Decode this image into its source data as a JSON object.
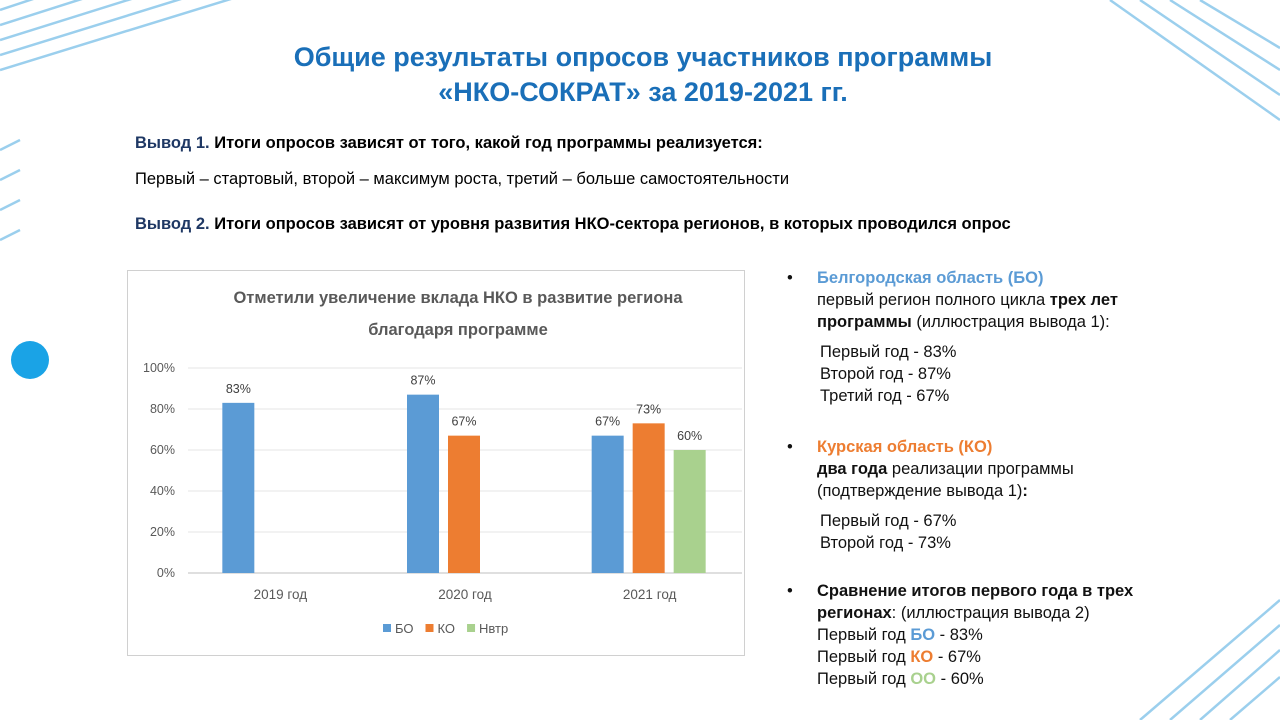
{
  "title": [
    "Общие результаты опросов участников программы",
    "«НКО-СОКРАТ» за 2019-2021 гг."
  ],
  "conclusions": [
    {
      "label": "Вывод 1.",
      "text": "Итоги опросов зависят от того, какой год программы реализуется:",
      "detail": "Первый – стартовый, второй – максимум роста, третий – больше самостоятельности"
    },
    {
      "label": "Вывод 2.",
      "text": "Итоги опросов зависят от уровня развития НКО-сектора регионов, в которых проводился опрос"
    }
  ],
  "notes": [
    {
      "heading": "Белгородская область (БО)",
      "desc": [
        "первый регион полного цикла",
        "трех лет программы",
        "(иллюстрация  вывода 1):"
      ],
      "lines": [
        "Первый год - 83%",
        "Второй год - 87%",
        "Третий год - 67%"
      ]
    },
    {
      "heading": "Курская область (КО)",
      "desc": [
        "два года",
        "реализации программы (подтверждение вывода 1)",
        ":"
      ],
      "lines": [
        "Первый год - 67%",
        "Второй год - 73%"
      ]
    },
    {
      "heading": "Сравнение итогов первого года в трех регионах",
      "desc": [
        ": (иллюстрация  вывода 2)"
      ],
      "lines": [
        [
          "Первый год",
          "БО",
          "- 83%"
        ],
        [
          "Первый год",
          "КО",
          "- 67%"
        ],
        [
          "Первый год",
          "ОО",
          "- 60%"
        ]
      ]
    }
  ],
  "chart_data": {
    "type": "bar",
    "title": [
      "Отметили увеличение вклада НКО в развитие региона",
      "благодаря программе"
    ],
    "categories": [
      "2019 год",
      "2020 год",
      "2021 год"
    ],
    "series": [
      {
        "name": "БО",
        "color": "#5b9bd5",
        "values": [
          83,
          87,
          67
        ],
        "value_labels": [
          "83%",
          "87%",
          "67%"
        ]
      },
      {
        "name": "КО",
        "color": "#ed7d31",
        "values": [
          null,
          67,
          73
        ],
        "value_labels": [
          null,
          "67%",
          "73%"
        ]
      },
      {
        "name": "Нвтр",
        "color": "#a9d18e",
        "values": [
          null,
          null,
          60
        ],
        "value_labels": [
          null,
          null,
          "60%"
        ]
      }
    ],
    "ylim": [
      0,
      100
    ],
    "yticks": [
      {
        "value": 0,
        "label": "0%"
      },
      {
        "value": 20,
        "label": "20%"
      },
      {
        "value": 40,
        "label": "40%"
      },
      {
        "value": 60,
        "label": "60%"
      },
      {
        "value": 80,
        "label": "80%"
      },
      {
        "value": 100,
        "label": "100%"
      }
    ],
    "grid": true,
    "legend": "bottom"
  }
}
